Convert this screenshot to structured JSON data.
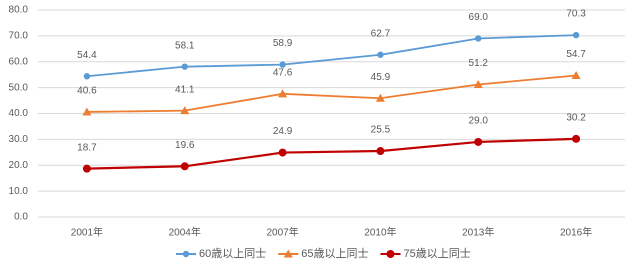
{
  "chart_data": {
    "type": "line",
    "categories": [
      "2001年",
      "2004年",
      "2007年",
      "2010年",
      "2013年",
      "2016年"
    ],
    "series": [
      {
        "name": "60歳以上同士",
        "color": "#5b9bd5",
        "marker": "circle",
        "values": [
          54.4,
          58.1,
          58.9,
          62.7,
          69.0,
          70.3
        ],
        "value_labels": [
          "54.4",
          "58.1",
          "58.9",
          "62.7",
          "69.0",
          "70.3"
        ]
      },
      {
        "name": "65歳以上同士",
        "color": "#ed7d31",
        "marker": "triangle",
        "values": [
          40.6,
          41.1,
          47.6,
          45.9,
          51.2,
          54.7
        ],
        "value_labels": [
          "40.6",
          "41.1",
          "47.6",
          "45.9",
          "51.2",
          "54.7"
        ]
      },
      {
        "name": "75歳以上同士",
        "color": "#c00000",
        "marker": "circle",
        "values": [
          18.7,
          19.6,
          24.9,
          25.5,
          29.0,
          30.2
        ],
        "value_labels": [
          "18.7",
          "19.6",
          "24.9",
          "25.5",
          "29.0",
          "30.2"
        ]
      }
    ],
    "ylim": [
      0,
      80
    ],
    "yticks": [
      {
        "value": 0,
        "label": "0.0"
      },
      {
        "value": 10,
        "label": "10.0"
      },
      {
        "value": 20,
        "label": "20.0"
      },
      {
        "value": 30,
        "label": "30.0"
      },
      {
        "value": 40,
        "label": "40.0"
      },
      {
        "value": 50,
        "label": "50.0"
      },
      {
        "value": 60,
        "label": "60.0"
      },
      {
        "value": 70,
        "label": "70.0"
      },
      {
        "value": 80,
        "label": "80.0"
      }
    ],
    "grid": true,
    "legend": "bottom"
  }
}
